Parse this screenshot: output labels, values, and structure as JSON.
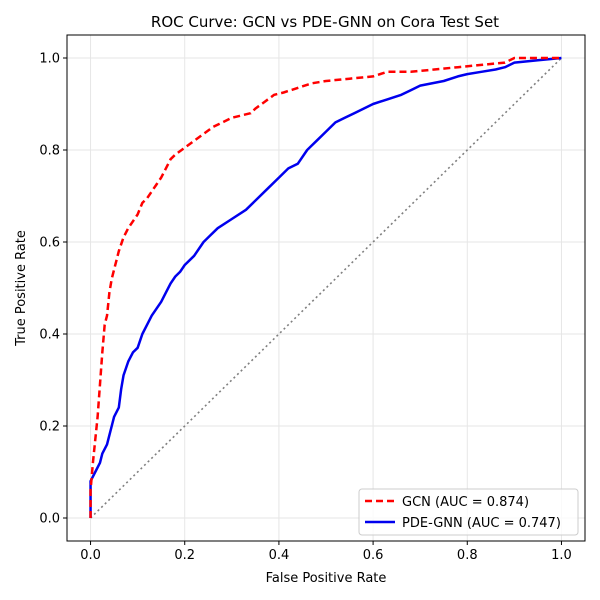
{
  "chart_data": {
    "type": "line",
    "title": "ROC Curve: GCN vs PDE-GNN on Cora Test Set",
    "xlabel": "False Positive Rate",
    "ylabel": "True Positive Rate",
    "xlim": [
      -0.05,
      1.05
    ],
    "ylim": [
      -0.05,
      1.05
    ],
    "xticks": [
      "0.0",
      "0.2",
      "0.4",
      "0.6",
      "0.8",
      "1.0"
    ],
    "yticks": [
      "0.0",
      "0.2",
      "0.4",
      "0.6",
      "0.8",
      "1.0"
    ],
    "grid": true,
    "legend_position": "lower-right",
    "series": [
      {
        "name": "GCN (AUC = 0.874)",
        "color": "#ff0000",
        "style": "dashed",
        "x": [
          0.0,
          0.0,
          0.005,
          0.01,
          0.015,
          0.02,
          0.025,
          0.03,
          0.035,
          0.04,
          0.045,
          0.05,
          0.055,
          0.06,
          0.07,
          0.08,
          0.09,
          0.1,
          0.11,
          0.12,
          0.13,
          0.14,
          0.15,
          0.16,
          0.17,
          0.18,
          0.2,
          0.22,
          0.24,
          0.26,
          0.28,
          0.3,
          0.32,
          0.34,
          0.35,
          0.37,
          0.39,
          0.41,
          0.44,
          0.47,
          0.5,
          0.55,
          0.6,
          0.63,
          0.68,
          0.73,
          0.78,
          0.83,
          0.88,
          0.9,
          0.95,
          1.0
        ],
        "y": [
          0.0,
          0.06,
          0.12,
          0.17,
          0.22,
          0.29,
          0.36,
          0.42,
          0.44,
          0.49,
          0.52,
          0.54,
          0.56,
          0.58,
          0.61,
          0.63,
          0.645,
          0.66,
          0.685,
          0.695,
          0.71,
          0.725,
          0.74,
          0.76,
          0.78,
          0.79,
          0.805,
          0.82,
          0.835,
          0.85,
          0.86,
          0.87,
          0.875,
          0.88,
          0.89,
          0.905,
          0.92,
          0.925,
          0.935,
          0.945,
          0.95,
          0.955,
          0.96,
          0.97,
          0.97,
          0.975,
          0.98,
          0.985,
          0.99,
          1.0,
          1.0,
          1.0
        ]
      },
      {
        "name": "PDE-GNN (AUC = 0.747)",
        "color": "#0000ee",
        "style": "solid",
        "x": [
          0.0,
          0.0,
          0.01,
          0.02,
          0.025,
          0.035,
          0.04,
          0.045,
          0.05,
          0.06,
          0.065,
          0.07,
          0.08,
          0.09,
          0.1,
          0.11,
          0.12,
          0.13,
          0.14,
          0.15,
          0.16,
          0.17,
          0.18,
          0.19,
          0.2,
          0.22,
          0.24,
          0.25,
          0.27,
          0.3,
          0.33,
          0.35,
          0.38,
          0.4,
          0.42,
          0.44,
          0.46,
          0.47,
          0.48,
          0.5,
          0.52,
          0.54,
          0.56,
          0.58,
          0.6,
          0.63,
          0.66,
          0.68,
          0.7,
          0.75,
          0.78,
          0.8,
          0.83,
          0.86,
          0.88,
          0.9,
          0.95,
          1.0
        ],
        "y": [
          0.0,
          0.08,
          0.1,
          0.12,
          0.14,
          0.16,
          0.18,
          0.2,
          0.22,
          0.24,
          0.28,
          0.31,
          0.34,
          0.36,
          0.37,
          0.4,
          0.42,
          0.44,
          0.455,
          0.47,
          0.49,
          0.51,
          0.525,
          0.535,
          0.55,
          0.57,
          0.6,
          0.61,
          0.63,
          0.65,
          0.67,
          0.69,
          0.72,
          0.74,
          0.76,
          0.77,
          0.8,
          0.81,
          0.82,
          0.84,
          0.86,
          0.87,
          0.88,
          0.89,
          0.9,
          0.91,
          0.92,
          0.93,
          0.94,
          0.95,
          0.96,
          0.965,
          0.97,
          0.975,
          0.98,
          0.99,
          0.995,
          1.0
        ]
      },
      {
        "name": "",
        "color": "#808080",
        "style": "dotted",
        "x": [
          0.0,
          1.0
        ],
        "y": [
          0.0,
          1.0
        ]
      }
    ]
  }
}
